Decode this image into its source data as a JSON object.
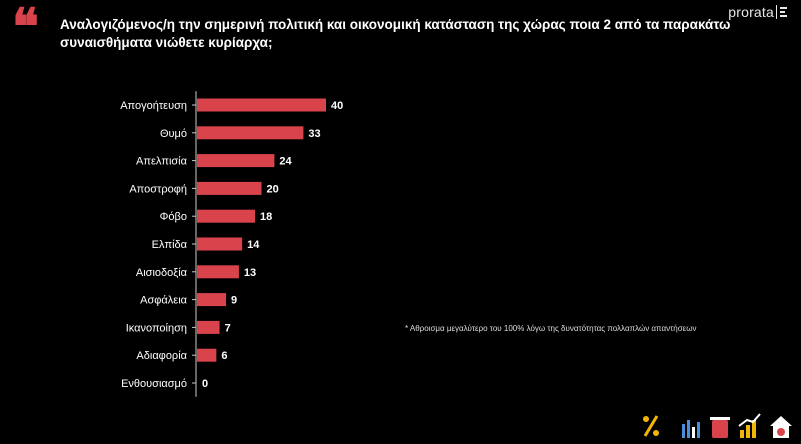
{
  "title": "Αναλογιζόμενος/η την σημερινή πολιτική και οικονομική κατάσταση της χώρας ποια 2 από τα παρακάτω συναισθήματα νιώθετε κυρίαρχα;",
  "logo": "prorata",
  "footnote": "* Αθροισμα μεγαλύτερο του 100% λόγω της δυνατότητας πολλαπλών απαντήσεων",
  "colors": {
    "bar": "#d9434c",
    "background": "#000000",
    "axis": "#cccccc"
  },
  "footer_icons": [
    "percent-icon",
    "bar-chart-icon",
    "bin-icon",
    "growth-chart-icon",
    "home-icon"
  ],
  "chart_data": {
    "type": "bar",
    "orientation": "horizontal",
    "categories": [
      "Απογοήτευση",
      "Θυμό",
      "Απελπισία",
      "Αποστροφή",
      "Φόβο",
      "Ελπίδα",
      "Αισιοδοξία",
      "Ασφάλεια",
      "Ικανοποίηση",
      "Αδιαφορία",
      "Ενθουσιασμό"
    ],
    "values": [
      40,
      33,
      24,
      20,
      18,
      14,
      13,
      9,
      7,
      6,
      0
    ],
    "value_labels": [
      "40",
      "33",
      "24",
      "20",
      "18",
      "14",
      "13",
      "9",
      "7",
      "6",
      "0"
    ],
    "xlim": [
      0,
      40
    ],
    "grid": false,
    "legend": "none"
  }
}
